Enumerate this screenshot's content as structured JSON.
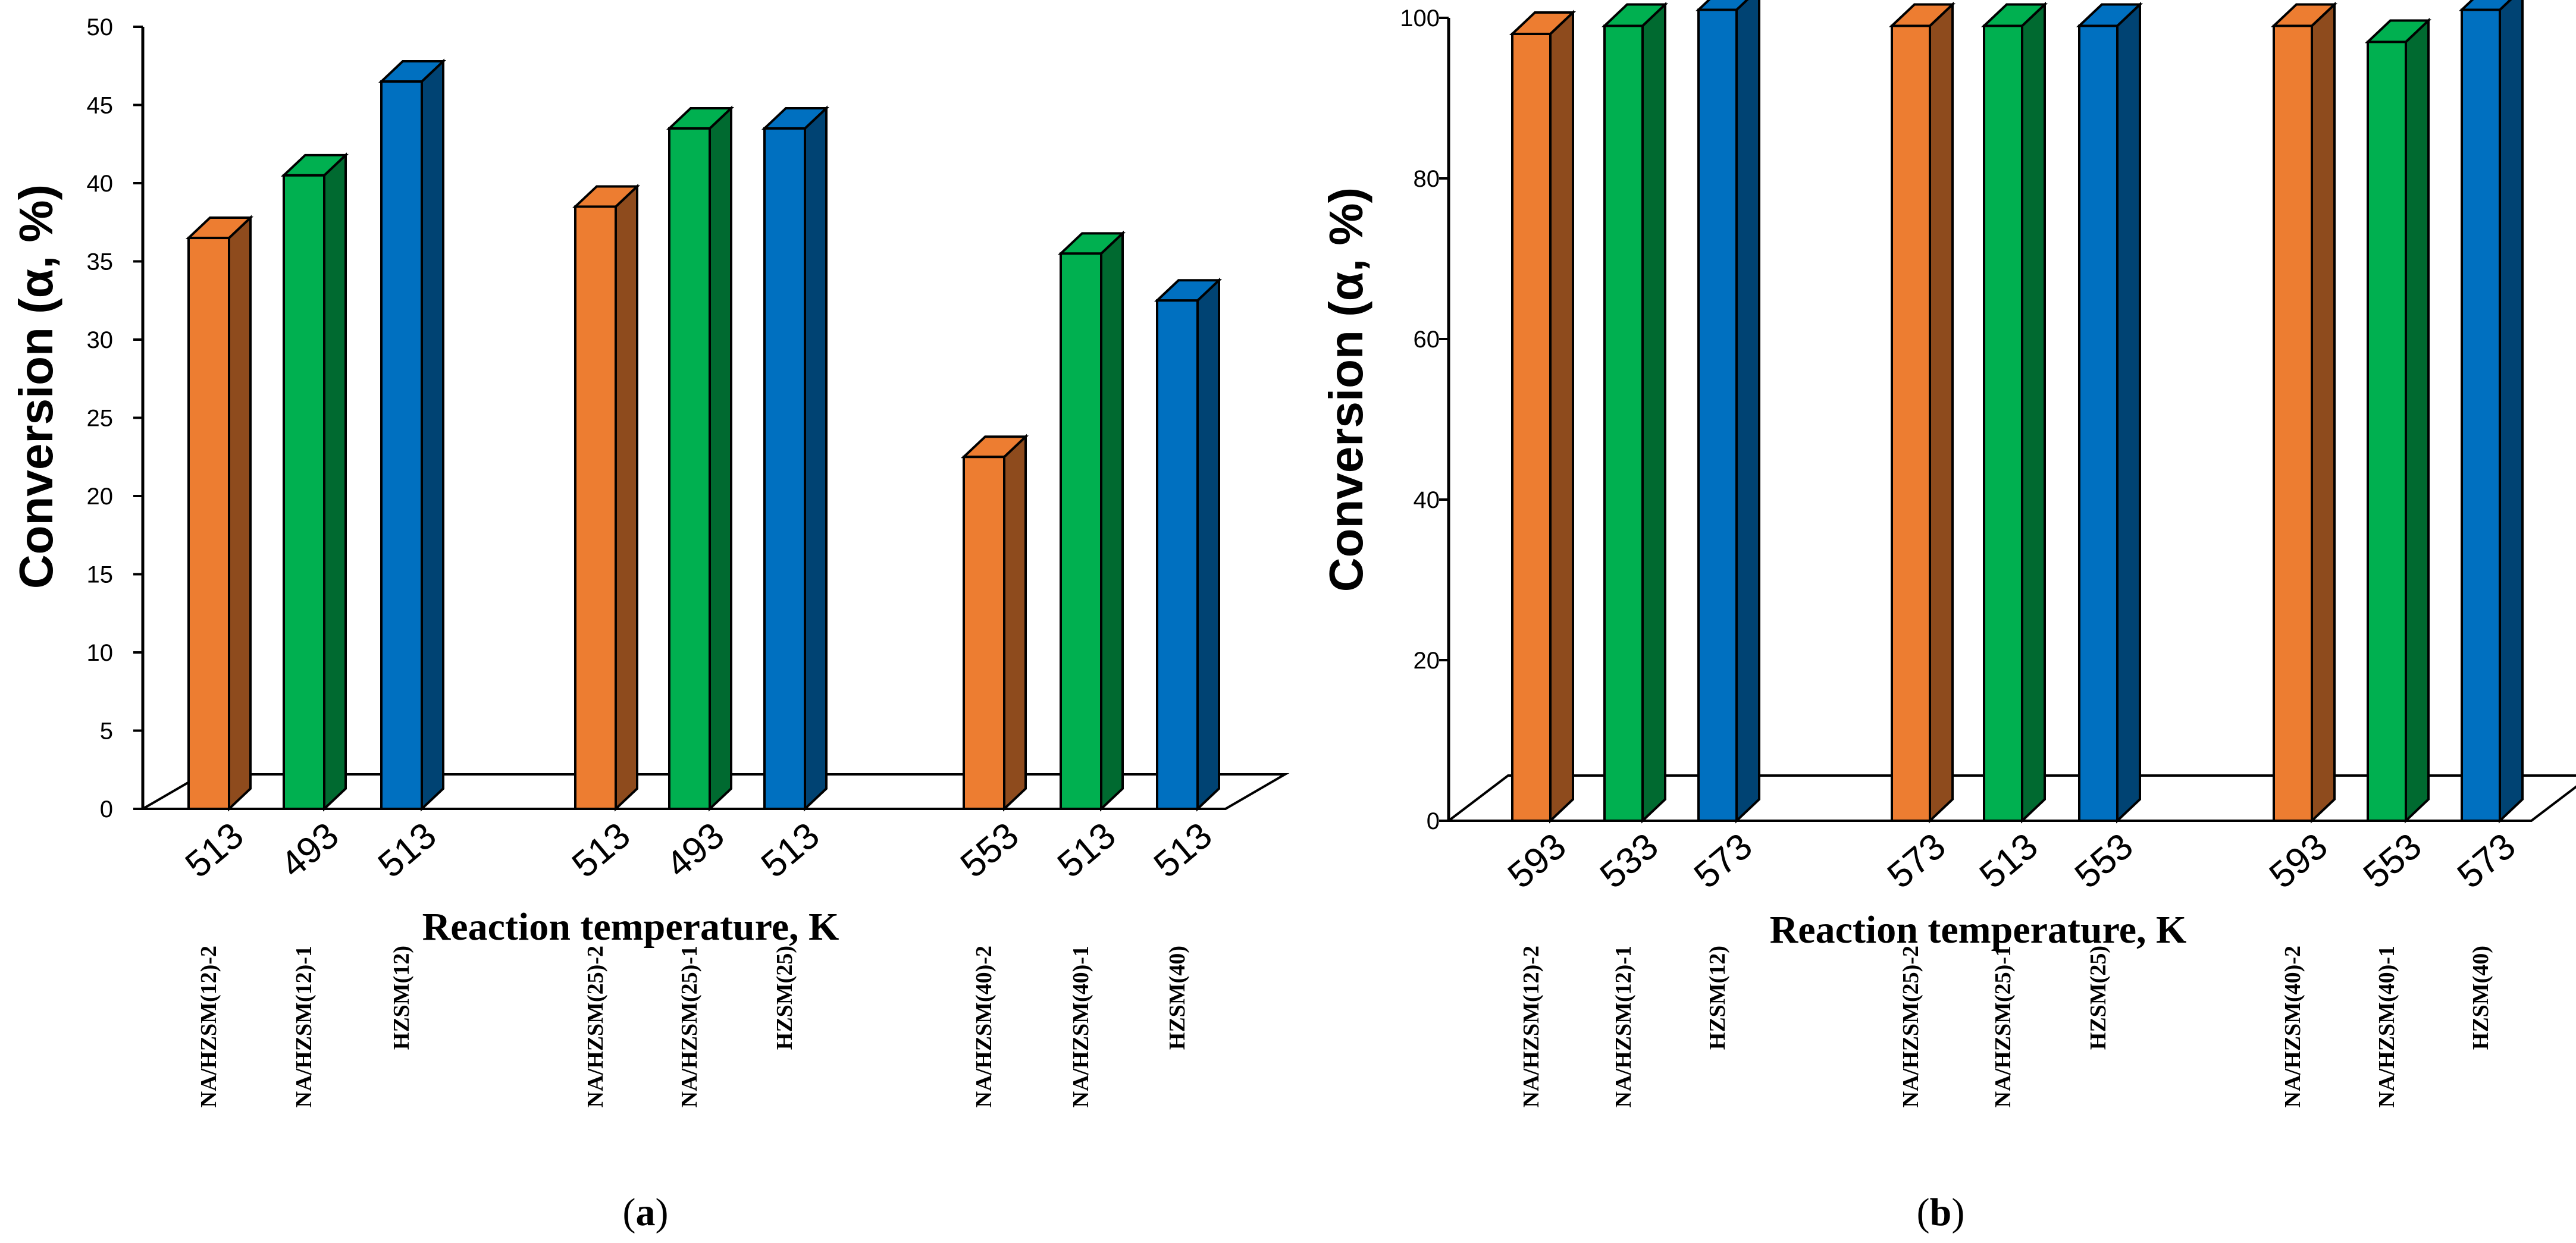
{
  "colors": {
    "NA/HZSM-2": "#ED7D31",
    "NA/HZSM-1": "#00B050",
    "HZSM": "#0070C0"
  },
  "chart_data": [
    {
      "type": "bar",
      "style": "3d-columns",
      "panel_letter": "a",
      "ylabel": "Conversion (α, %)",
      "xlabel": "Reaction temperature, K",
      "ylim": [
        0,
        50
      ],
      "yticks": [
        0,
        5,
        10,
        15,
        20,
        25,
        30,
        35,
        40,
        45,
        50
      ],
      "grid": false,
      "categories": [
        "NA/HZSM(12)-2",
        "NA/HZSM(12)-1",
        "HZSM(12)",
        "NA/HZSM(25)-2",
        "NA/HZSM(25)-1",
        "HZSM(25)",
        "NA/HZSM(40)-2",
        "NA/HZSM(40)-1",
        "HZSM(40)"
      ],
      "temperatures": [
        "513",
        "493",
        "513",
        "513",
        "493",
        "513",
        "553",
        "513",
        "513"
      ],
      "values": [
        36.5,
        40.5,
        46.5,
        38.5,
        43.5,
        43.5,
        22.5,
        35.5,
        32.5
      ],
      "series_keys": [
        "NA/HZSM-2",
        "NA/HZSM-1",
        "HZSM",
        "NA/HZSM-2",
        "NA/HZSM-1",
        "HZSM",
        "NA/HZSM-2",
        "NA/HZSM-1",
        "HZSM"
      ]
    },
    {
      "type": "bar",
      "style": "3d-columns",
      "panel_letter": "b",
      "ylabel": "Conversion (α, %)",
      "xlabel": "Reaction temperature, K",
      "ylim": [
        0,
        100
      ],
      "yticks": [
        0,
        20,
        40,
        60,
        80,
        100
      ],
      "grid": false,
      "categories": [
        "NA/HZSM(12)-2",
        "NA/HZSM(12)-1",
        "HZSM(12)",
        "NA/HZSM(25)-2",
        "NA/HZSM(25)-1",
        "HZSM(25)",
        "NA/HZSM(40)-2",
        "NA/HZSM(40)-1",
        "HZSM(40)"
      ],
      "temperatures": [
        "593",
        "533",
        "573",
        "573",
        "513",
        "553",
        "593",
        "553",
        "573"
      ],
      "values": [
        98,
        99,
        101,
        99,
        99,
        99,
        99,
        97,
        101
      ],
      "series_keys": [
        "NA/HZSM-2",
        "NA/HZSM-1",
        "HZSM",
        "NA/HZSM-2",
        "NA/HZSM-1",
        "HZSM",
        "NA/HZSM-2",
        "NA/HZSM-1",
        "HZSM"
      ]
    }
  ]
}
